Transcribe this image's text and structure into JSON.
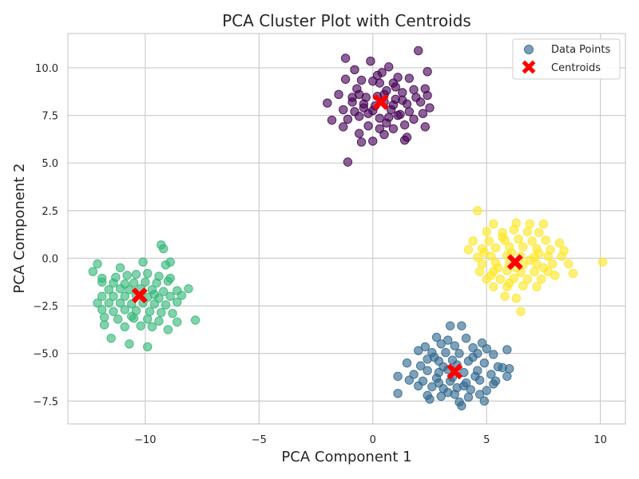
{
  "chart_data": {
    "type": "scatter",
    "title": "PCA Cluster Plot with Centroids",
    "xlabel": "PCA Component 1",
    "ylabel": "PCA Component 2",
    "xlim": [
      -13.4,
      11.1
    ],
    "ylim": [
      -8.7,
      11.8
    ],
    "xticks": [
      -10,
      -5,
      0,
      5,
      10
    ],
    "yticks": [
      -7.5,
      -5.0,
      -2.5,
      0.0,
      2.5,
      5.0,
      7.5,
      10.0
    ],
    "xtick_labels": [
      "−10",
      "−5",
      "0",
      "5",
      "10"
    ],
    "ytick_labels": [
      "−7.5",
      "−5.0",
      "−2.5",
      "0.0",
      "2.5",
      "5.0",
      "7.5",
      "10.0"
    ],
    "grid": true,
    "legend": {
      "placement": "top-right",
      "entries": [
        {
          "label": "Data Points",
          "marker": "circle",
          "color": "#5b84a8"
        },
        {
          "label": "Centroids",
          "marker": "x",
          "color": "#ff0000"
        }
      ]
    },
    "colors": {
      "cluster_purple": "#440154",
      "cluster_blue": "#31688e",
      "cluster_green": "#35b779",
      "cluster_yellow": "#fde725",
      "centroid": "#ff0000",
      "grid": "#cccccc",
      "axes_border": "#cccccc"
    },
    "series": [
      {
        "color": "#440154",
        "points": [
          [
            -1.2,
            10.5
          ],
          [
            -0.1,
            10.35
          ],
          [
            0.7,
            10.05
          ],
          [
            2.0,
            10.9
          ],
          [
            -0.8,
            9.9
          ],
          [
            0.4,
            9.75
          ],
          [
            2.4,
            9.8
          ],
          [
            -1.2,
            9.4
          ],
          [
            -0.5,
            9.35
          ],
          [
            1.1,
            9.5
          ],
          [
            1.6,
            9.45
          ],
          [
            0.0,
            9.3
          ],
          [
            0.3,
            9.2
          ],
          [
            0.9,
            9.2
          ],
          [
            -0.7,
            8.9
          ],
          [
            0.6,
            8.8
          ],
          [
            1.3,
            8.7
          ],
          [
            2.3,
            8.9
          ],
          [
            -0.6,
            8.6
          ],
          [
            -0.3,
            8.45
          ],
          [
            0.2,
            8.5
          ],
          [
            1.0,
            8.35
          ],
          [
            1.9,
            8.45
          ],
          [
            2.4,
            8.55
          ],
          [
            -2.0,
            8.15
          ],
          [
            -0.9,
            8.2
          ],
          [
            -0.4,
            8.1
          ],
          [
            0.5,
            8.2
          ],
          [
            1.5,
            8.1
          ],
          [
            2.1,
            8.2
          ],
          [
            -1.3,
            7.8
          ],
          [
            -0.8,
            7.7
          ],
          [
            0.0,
            7.75
          ],
          [
            0.8,
            7.8
          ],
          [
            1.6,
            7.7
          ],
          [
            2.5,
            7.9
          ],
          [
            -0.6,
            7.45
          ],
          [
            0.3,
            7.35
          ],
          [
            1.1,
            7.5
          ],
          [
            1.8,
            7.3
          ],
          [
            -1.8,
            7.25
          ],
          [
            -1.1,
            7.3
          ],
          [
            0.6,
            7.1
          ],
          [
            1.4,
            7.0
          ],
          [
            -1.3,
            6.9
          ],
          [
            -0.2,
            6.95
          ],
          [
            0.9,
            6.8
          ],
          [
            2.3,
            6.9
          ],
          [
            -0.6,
            6.55
          ],
          [
            0.5,
            6.5
          ],
          [
            1.5,
            6.35
          ],
          [
            1.4,
            6.2
          ],
          [
            -0.5,
            6.1
          ],
          [
            0.0,
            6.15
          ],
          [
            -1.1,
            5.05
          ],
          [
            0.1,
            8.0
          ],
          [
            0.9,
            8.05
          ],
          [
            1.2,
            7.55
          ],
          [
            -0.2,
            7.6
          ],
          [
            0.5,
            8.6
          ],
          [
            1.8,
            8.85
          ],
          [
            -0.9,
            8.45
          ],
          [
            0.3,
            6.8
          ],
          [
            1.0,
            9.0
          ],
          [
            -0.4,
            7.9
          ],
          [
            1.3,
            8.3
          ],
          [
            0.7,
            7.4
          ],
          [
            -1.5,
            8.6
          ],
          [
            2.2,
            7.6
          ],
          [
            0.2,
            9.6
          ]
        ]
      },
      {
        "color": "#31688e",
        "points": [
          [
            3.4,
            -3.55
          ],
          [
            3.9,
            -3.55
          ],
          [
            2.8,
            -4.15
          ],
          [
            3.3,
            -4.3
          ],
          [
            4.1,
            -4.2
          ],
          [
            4.8,
            -4.45
          ],
          [
            2.3,
            -4.65
          ],
          [
            3.0,
            -4.5
          ],
          [
            3.6,
            -4.6
          ],
          [
            4.4,
            -4.7
          ],
          [
            5.0,
            -4.75
          ],
          [
            5.9,
            -4.8
          ],
          [
            2.0,
            -4.85
          ],
          [
            2.6,
            -4.95
          ],
          [
            3.2,
            -4.95
          ],
          [
            3.8,
            -5.0
          ],
          [
            4.6,
            -5.0
          ],
          [
            5.3,
            -5.05
          ],
          [
            1.5,
            -5.5
          ],
          [
            2.4,
            -5.3
          ],
          [
            2.9,
            -5.4
          ],
          [
            3.5,
            -5.35
          ],
          [
            4.2,
            -5.4
          ],
          [
            4.9,
            -5.5
          ],
          [
            5.5,
            -5.7
          ],
          [
            6.0,
            -5.8
          ],
          [
            1.1,
            -6.2
          ],
          [
            1.8,
            -6.1
          ],
          [
            2.4,
            -5.9
          ],
          [
            2.9,
            -6.0
          ],
          [
            3.3,
            -5.85
          ],
          [
            4.0,
            -6.0
          ],
          [
            4.6,
            -5.9
          ],
          [
            5.2,
            -6.1
          ],
          [
            5.9,
            -6.2
          ],
          [
            1.6,
            -6.4
          ],
          [
            2.2,
            -6.45
          ],
          [
            2.8,
            -6.3
          ],
          [
            3.4,
            -6.45
          ],
          [
            4.1,
            -6.55
          ],
          [
            4.7,
            -6.4
          ],
          [
            5.4,
            -6.45
          ],
          [
            2.0,
            -6.7
          ],
          [
            2.6,
            -6.75
          ],
          [
            3.1,
            -6.85
          ],
          [
            3.7,
            -6.8
          ],
          [
            4.3,
            -6.9
          ],
          [
            5.0,
            -6.95
          ],
          [
            1.1,
            -7.1
          ],
          [
            2.4,
            -7.2
          ],
          [
            3.0,
            -7.25
          ],
          [
            3.6,
            -7.15
          ],
          [
            4.2,
            -7.3
          ],
          [
            4.7,
            -7.15
          ],
          [
            2.5,
            -7.4
          ],
          [
            3.8,
            -7.55
          ],
          [
            3.9,
            -7.75
          ],
          [
            4.9,
            -7.5
          ],
          [
            3.3,
            -7.05
          ],
          [
            4.5,
            -6.2
          ],
          [
            2.1,
            -5.65
          ],
          [
            3.7,
            -5.6
          ],
          [
            5.3,
            -6.6
          ],
          [
            2.9,
            -6.55
          ],
          [
            4.0,
            -6.7
          ],
          [
            3.1,
            -5.7
          ],
          [
            4.4,
            -5.2
          ],
          [
            2.7,
            -5.2
          ],
          [
            5.7,
            -5.75
          ],
          [
            3.5,
            -6.25
          ]
        ]
      },
      {
        "color": "#35b779",
        "points": [
          [
            -9.3,
            0.7
          ],
          [
            -9.2,
            0.5
          ],
          [
            -8.9,
            -0.2
          ],
          [
            -9.1,
            -0.35
          ],
          [
            -10.1,
            -0.2
          ],
          [
            -11.1,
            -0.5
          ],
          [
            -12.1,
            -0.3
          ],
          [
            -12.3,
            -0.7
          ],
          [
            -11.9,
            -1.05
          ],
          [
            -11.3,
            -1.0
          ],
          [
            -10.8,
            -0.9
          ],
          [
            -10.4,
            -0.85
          ],
          [
            -9.9,
            -0.8
          ],
          [
            -9.4,
            -0.95
          ],
          [
            -8.9,
            -1.05
          ],
          [
            -11.9,
            -1.25
          ],
          [
            -11.4,
            -1.3
          ],
          [
            -10.9,
            -1.35
          ],
          [
            -10.5,
            -1.3
          ],
          [
            -10.0,
            -1.25
          ],
          [
            -9.5,
            -1.3
          ],
          [
            -9.0,
            -1.2
          ],
          [
            -11.6,
            -1.65
          ],
          [
            -11.1,
            -1.6
          ],
          [
            -10.7,
            -1.65
          ],
          [
            -10.2,
            -1.6
          ],
          [
            -9.7,
            -1.65
          ],
          [
            -9.2,
            -1.75
          ],
          [
            -8.6,
            -1.7
          ],
          [
            -8.1,
            -1.6
          ],
          [
            -11.9,
            -2.0
          ],
          [
            -11.4,
            -2.0
          ],
          [
            -10.9,
            -2.0
          ],
          [
            -10.4,
            -1.95
          ],
          [
            -9.9,
            -2.05
          ],
          [
            -9.4,
            -2.1
          ],
          [
            -8.9,
            -2.0
          ],
          [
            -8.4,
            -1.95
          ],
          [
            -12.1,
            -2.35
          ],
          [
            -11.6,
            -2.35
          ],
          [
            -11.1,
            -2.35
          ],
          [
            -10.6,
            -2.4
          ],
          [
            -10.1,
            -2.35
          ],
          [
            -9.6,
            -2.4
          ],
          [
            -9.1,
            -2.45
          ],
          [
            -8.6,
            -2.3
          ],
          [
            -11.9,
            -2.7
          ],
          [
            -11.4,
            -2.8
          ],
          [
            -10.9,
            -2.7
          ],
          [
            -10.4,
            -2.75
          ],
          [
            -9.8,
            -2.8
          ],
          [
            -9.3,
            -2.85
          ],
          [
            -8.8,
            -2.9
          ],
          [
            -11.8,
            -3.1
          ],
          [
            -11.2,
            -3.2
          ],
          [
            -10.5,
            -3.15
          ],
          [
            -9.9,
            -3.2
          ],
          [
            -9.4,
            -3.3
          ],
          [
            -8.6,
            -3.35
          ],
          [
            -7.8,
            -3.25
          ],
          [
            -11.8,
            -3.5
          ],
          [
            -10.9,
            -3.6
          ],
          [
            -10.2,
            -3.55
          ],
          [
            -9.7,
            -3.6
          ],
          [
            -9.0,
            -3.75
          ],
          [
            -11.5,
            -4.2
          ],
          [
            -10.7,
            -4.5
          ],
          [
            -9.9,
            -4.65
          ],
          [
            -10.6,
            -3.05
          ],
          [
            -9.6,
            -1.9
          ]
        ]
      },
      {
        "color": "#fde725",
        "points": [
          [
            4.6,
            2.5
          ],
          [
            5.3,
            1.8
          ],
          [
            6.3,
            1.85
          ],
          [
            6.9,
            1.8
          ],
          [
            7.5,
            1.8
          ],
          [
            5.0,
            1.4
          ],
          [
            5.7,
            1.35
          ],
          [
            6.2,
            1.5
          ],
          [
            6.8,
            1.4
          ],
          [
            7.3,
            1.35
          ],
          [
            4.4,
            0.9
          ],
          [
            5.1,
            0.9
          ],
          [
            5.8,
            0.95
          ],
          [
            6.4,
            1.0
          ],
          [
            7.0,
            0.9
          ],
          [
            7.6,
            0.95
          ],
          [
            8.2,
            0.8
          ],
          [
            4.2,
            0.45
          ],
          [
            4.8,
            0.5
          ],
          [
            5.4,
            0.55
          ],
          [
            6.0,
            0.6
          ],
          [
            6.6,
            0.6
          ],
          [
            7.2,
            0.5
          ],
          [
            7.8,
            0.45
          ],
          [
            8.4,
            0.4
          ],
          [
            4.6,
            0.05
          ],
          [
            5.2,
            0.1
          ],
          [
            5.9,
            0.15
          ],
          [
            6.5,
            0.1
          ],
          [
            7.1,
            0.05
          ],
          [
            7.7,
            0.1
          ],
          [
            8.3,
            0.1
          ],
          [
            4.8,
            -0.3
          ],
          [
            5.4,
            -0.25
          ],
          [
            6.0,
            -0.3
          ],
          [
            6.6,
            -0.35
          ],
          [
            7.2,
            -0.3
          ],
          [
            7.9,
            -0.3
          ],
          [
            8.6,
            -0.3
          ],
          [
            10.1,
            -0.2
          ],
          [
            4.7,
            -0.7
          ],
          [
            5.3,
            -0.7
          ],
          [
            5.9,
            -0.65
          ],
          [
            6.5,
            -0.75
          ],
          [
            7.1,
            -0.7
          ],
          [
            7.7,
            -0.7
          ],
          [
            8.8,
            -0.8
          ],
          [
            5.0,
            -1.1
          ],
          [
            5.6,
            -1.1
          ],
          [
            6.2,
            -1.05
          ],
          [
            6.8,
            -1.1
          ],
          [
            7.4,
            -1.1
          ],
          [
            5.3,
            -1.5
          ],
          [
            5.9,
            -1.5
          ],
          [
            6.6,
            -1.45
          ],
          [
            7.2,
            -1.5
          ],
          [
            5.8,
            -2.0
          ],
          [
            6.3,
            -2.1
          ],
          [
            6.5,
            -2.8
          ],
          [
            4.9,
            0.3
          ],
          [
            6.1,
            0.3
          ],
          [
            7.5,
            -0.5
          ],
          [
            5.5,
            -0.5
          ],
          [
            6.9,
            -0.1
          ],
          [
            6.3,
            -0.5
          ],
          [
            7.3,
            0.25
          ],
          [
            5.7,
            1.1
          ],
          [
            6.0,
            -1.3
          ],
          [
            8.0,
            -0.9
          ],
          [
            5.2,
            -0.9
          ]
        ]
      }
    ],
    "centroids": [
      [
        0.35,
        8.2
      ],
      [
        3.6,
        -5.95
      ],
      [
        -10.25,
        -1.95
      ],
      [
        6.25,
        -0.2
      ]
    ]
  }
}
